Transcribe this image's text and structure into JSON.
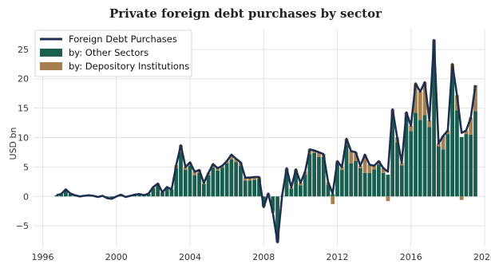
{
  "chart_data": {
    "type": "bar",
    "title": "Private foreign debt purchases by sector",
    "xlabel": "",
    "ylabel": "USD bn",
    "xlim": [
      1995.5,
      2020
    ],
    "ylim": [
      -8.5,
      28.5
    ],
    "xticks": [
      1996,
      2000,
      2004,
      2008,
      2012,
      2016,
      2020
    ],
    "xtick_labels": [
      "1996",
      "2000",
      "2004",
      "2008",
      "2012",
      "2016",
      "2020"
    ],
    "yticks": [
      -5,
      0,
      5,
      10,
      15,
      20,
      25
    ],
    "ytick_labels": [
      "−5",
      "0",
      "5",
      "10",
      "15",
      "20",
      "25"
    ],
    "grid": true,
    "legend": {
      "position": "top-left",
      "entries": [
        "Foreign Debt Purchases",
        "by: Other Sectors",
        "by: Depository Institutions"
      ]
    },
    "colors": {
      "line": "#1f2f4f",
      "other": "#195e4e",
      "depository": "#a57f4f"
    },
    "x": [
      1996.75,
      1997.0,
      1997.25,
      1997.5,
      1997.75,
      1998.0,
      1998.25,
      1998.5,
      1998.75,
      1999.0,
      1999.25,
      1999.5,
      1999.75,
      2000.0,
      2000.25,
      2000.5,
      2000.75,
      2001.0,
      2001.25,
      2001.5,
      2001.75,
      2002.0,
      2002.25,
      2002.5,
      2002.75,
      2003.0,
      2003.25,
      2003.5,
      2003.75,
      2004.0,
      2004.25,
      2004.5,
      2004.75,
      2005.0,
      2005.25,
      2005.5,
      2005.75,
      2006.0,
      2006.25,
      2006.5,
      2006.75,
      2007.0,
      2007.25,
      2007.5,
      2007.75,
      2008.0,
      2008.25,
      2008.5,
      2008.75,
      2009.0,
      2009.25,
      2009.5,
      2009.75,
      2010.0,
      2010.25,
      2010.5,
      2010.75,
      2011.0,
      2011.25,
      2011.5,
      2011.75,
      2012.0,
      2012.25,
      2012.5,
      2012.75,
      2013.0,
      2013.25,
      2013.5,
      2013.75,
      2014.0,
      2014.25,
      2014.5,
      2014.75,
      2015.0,
      2015.25,
      2015.5,
      2015.75,
      2016.0,
      2016.25,
      2016.5,
      2016.75,
      2017.0,
      2017.25,
      2017.5,
      2017.75,
      2018.0,
      2018.25,
      2018.5,
      2018.75,
      2019.0,
      2019.25,
      2019.5
    ],
    "series": [
      {
        "name": "Foreign Debt Purchases",
        "kind": "line",
        "values": [
          0.2,
          0.4,
          1.2,
          0.5,
          0.2,
          0.0,
          0.1,
          0.2,
          0.1,
          -0.1,
          0.1,
          -0.3,
          -0.4,
          0.0,
          0.3,
          -0.1,
          0.1,
          0.3,
          0.4,
          0.2,
          0.5,
          1.6,
          2.2,
          0.7,
          1.6,
          1.2,
          5.3,
          8.7,
          5.0,
          5.8,
          4.2,
          4.5,
          2.3,
          4.0,
          5.5,
          4.8,
          5.2,
          6.0,
          7.1,
          6.4,
          5.8,
          3.2,
          3.2,
          3.3,
          3.3,
          -1.8,
          0.5,
          -2.8,
          -7.8,
          0.1,
          4.8,
          1.5,
          4.6,
          2.3,
          4.2,
          8.0,
          7.8,
          7.5,
          7.2,
          2.4,
          0.5,
          6.0,
          5.0,
          9.8,
          7.7,
          7.5,
          5.2,
          7.1,
          5.4,
          5.2,
          6.0,
          4.8,
          4.2,
          14.8,
          10.0,
          5.7,
          14.3,
          12.0,
          19.2,
          17.8,
          19.4,
          12.9,
          26.6,
          9.0,
          10.3,
          11.2,
          22.5,
          17.2,
          10.8,
          11.2,
          13.4,
          18.9
        ]
      },
      {
        "name": "by: Other Sectors",
        "kind": "bar",
        "values": [
          0.2,
          0.4,
          1.0,
          0.4,
          0.2,
          0.0,
          0.1,
          0.2,
          0.1,
          -0.1,
          0.1,
          -0.3,
          -0.4,
          0.0,
          0.3,
          -0.1,
          0.1,
          0.3,
          0.4,
          0.2,
          0.4,
          1.4,
          2.0,
          0.7,
          1.5,
          1.2,
          4.8,
          7.5,
          4.5,
          5.2,
          3.6,
          4.0,
          2.1,
          3.6,
          4.9,
          4.4,
          4.9,
          5.6,
          6.3,
          5.8,
          5.2,
          2.7,
          2.7,
          2.8,
          3.0,
          -1.6,
          0.3,
          -2.5,
          -7.4,
          0.1,
          4.3,
          1.3,
          4.1,
          1.9,
          3.7,
          7.2,
          7.4,
          6.7,
          6.7,
          2.0,
          0.4,
          5.6,
          4.5,
          8.7,
          5.6,
          6.0,
          4.8,
          4.0,
          4.0,
          4.6,
          5.4,
          4.0,
          3.7,
          13.4,
          9.2,
          5.3,
          13.5,
          11.1,
          14.2,
          13.0,
          13.8,
          11.8,
          23.4,
          8.5,
          8.0,
          10.6,
          20.5,
          14.6,
          10.1,
          10.6,
          10.5,
          14.5
        ]
      },
      {
        "name": "by: Depository Institutions",
        "kind": "bar",
        "values": [
          0.0,
          0.0,
          0.2,
          0.1,
          0.0,
          0.0,
          0.0,
          0.0,
          0.0,
          0.0,
          0.0,
          0.0,
          0.0,
          0.0,
          0.0,
          0.0,
          0.0,
          0.0,
          0.0,
          0.0,
          0.1,
          0.2,
          0.2,
          0.0,
          0.1,
          0.0,
          0.5,
          1.2,
          0.5,
          0.6,
          0.6,
          0.5,
          0.2,
          0.4,
          0.6,
          0.4,
          0.3,
          0.4,
          0.8,
          0.6,
          0.6,
          0.5,
          0.5,
          0.5,
          0.3,
          -0.2,
          0.2,
          -0.3,
          -0.4,
          0.0,
          0.5,
          0.2,
          0.5,
          0.4,
          0.5,
          0.8,
          0.4,
          0.8,
          0.5,
          0.4,
          -1.3,
          0.4,
          0.5,
          1.1,
          2.1,
          1.5,
          0.4,
          3.1,
          1.4,
          0.6,
          0.6,
          0.8,
          -0.8,
          1.4,
          0.8,
          0.4,
          0.8,
          0.9,
          5.0,
          4.8,
          5.6,
          1.1,
          3.2,
          0.5,
          2.3,
          0.6,
          2.0,
          2.6,
          -0.6,
          0.6,
          2.9,
          4.4
        ]
      }
    ]
  }
}
